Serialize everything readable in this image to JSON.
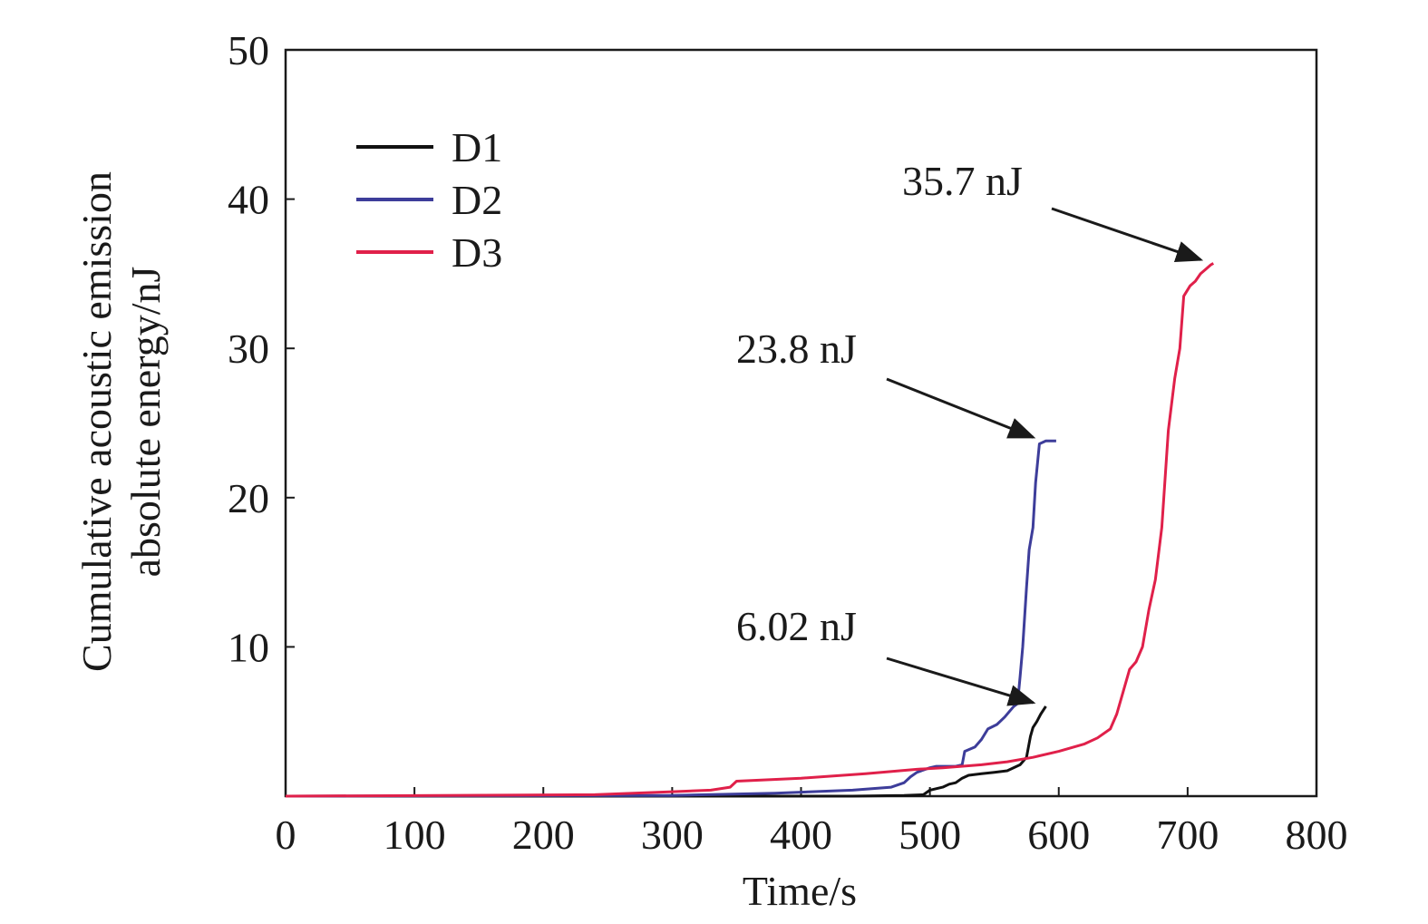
{
  "chart_data": {
    "type": "line",
    "title": "",
    "xlabel": "Time/s",
    "ylabel_lines": [
      "Cumulative acoustic emission",
      "absolute energy/nJ"
    ],
    "xlim": [
      0,
      800
    ],
    "ylim": [
      0,
      50
    ],
    "x_ticks": [
      "0",
      "100",
      "200",
      "300",
      "400",
      "500",
      "600",
      "700",
      "800"
    ],
    "y_ticks": [
      "10",
      "20",
      "30",
      "40",
      "50"
    ],
    "grid": false,
    "legend_position": "top-left",
    "series": [
      {
        "name": "D1",
        "color": "#111111",
        "points": [
          [
            0,
            0
          ],
          [
            300,
            0
          ],
          [
            440,
            0
          ],
          [
            480,
            0.05
          ],
          [
            495,
            0.1
          ],
          [
            500,
            0.4
          ],
          [
            510,
            0.6
          ],
          [
            515,
            0.8
          ],
          [
            520,
            0.9
          ],
          [
            525,
            1.2
          ],
          [
            530,
            1.4
          ],
          [
            540,
            1.5
          ],
          [
            550,
            1.6
          ],
          [
            560,
            1.7
          ],
          [
            570,
            2.1
          ],
          [
            575,
            2.6
          ],
          [
            578,
            4.0
          ],
          [
            580,
            4.6
          ],
          [
            583,
            5.0
          ],
          [
            586,
            5.5
          ],
          [
            590,
            6.02
          ]
        ]
      },
      {
        "name": "D2",
        "color": "#3d3d9a",
        "points": [
          [
            0,
            0
          ],
          [
            300,
            0.05
          ],
          [
            380,
            0.2
          ],
          [
            440,
            0.4
          ],
          [
            470,
            0.6
          ],
          [
            480,
            0.9
          ],
          [
            485,
            1.3
          ],
          [
            490,
            1.6
          ],
          [
            500,
            1.9
          ],
          [
            505,
            2.0
          ],
          [
            520,
            2.0
          ],
          [
            525,
            2.1
          ],
          [
            527,
            3.0
          ],
          [
            535,
            3.3
          ],
          [
            540,
            3.8
          ],
          [
            545,
            4.5
          ],
          [
            552,
            4.8
          ],
          [
            558,
            5.3
          ],
          [
            562,
            5.7
          ],
          [
            565,
            6.0
          ],
          [
            568,
            6.2
          ],
          [
            570,
            8.0
          ],
          [
            572,
            10.0
          ],
          [
            575,
            14.0
          ],
          [
            577,
            16.5
          ],
          [
            580,
            18.0
          ],
          [
            582,
            21.0
          ],
          [
            585,
            23.6
          ],
          [
            590,
            23.8
          ],
          [
            598,
            23.8
          ]
        ]
      },
      {
        "name": "D3",
        "color": "#e0204a",
        "points": [
          [
            0,
            0
          ],
          [
            240,
            0.1
          ],
          [
            300,
            0.3
          ],
          [
            330,
            0.4
          ],
          [
            345,
            0.6
          ],
          [
            350,
            1.0
          ],
          [
            400,
            1.2
          ],
          [
            450,
            1.5
          ],
          [
            490,
            1.8
          ],
          [
            510,
            1.9
          ],
          [
            540,
            2.1
          ],
          [
            560,
            2.3
          ],
          [
            580,
            2.6
          ],
          [
            600,
            3.0
          ],
          [
            620,
            3.5
          ],
          [
            630,
            3.9
          ],
          [
            640,
            4.5
          ],
          [
            645,
            5.5
          ],
          [
            650,
            7.0
          ],
          [
            655,
            8.5
          ],
          [
            660,
            9.0
          ],
          [
            665,
            10.0
          ],
          [
            670,
            12.5
          ],
          [
            675,
            14.5
          ],
          [
            680,
            18.0
          ],
          [
            685,
            24.5
          ],
          [
            690,
            28.0
          ],
          [
            694,
            30.0
          ],
          [
            697,
            33.5
          ],
          [
            702,
            34.2
          ],
          [
            706,
            34.5
          ],
          [
            710,
            35.0
          ],
          [
            714,
            35.3
          ],
          [
            718,
            35.6
          ],
          [
            720,
            35.7
          ]
        ]
      }
    ],
    "annotations": [
      {
        "text": "35.7 nJ",
        "target": [
          720,
          35.7
        ]
      },
      {
        "text": "23.8 nJ",
        "target": [
          590,
          23.8
        ]
      },
      {
        "text": "6.02 nJ",
        "target": [
          590,
          6.02
        ]
      }
    ]
  }
}
